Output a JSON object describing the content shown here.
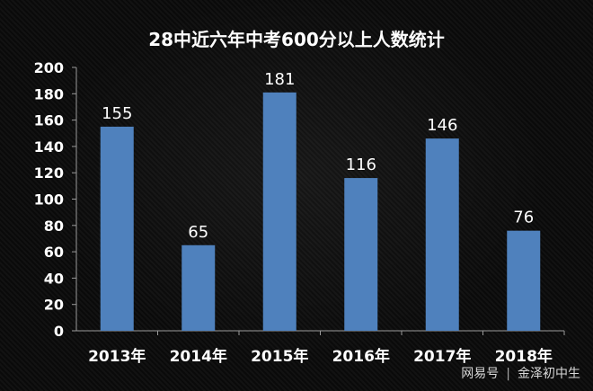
{
  "chart_data": {
    "type": "bar",
    "title": "28中近六年中考600分以上人数统计",
    "categories": [
      "2013年",
      "2014年",
      "2015年",
      "2016年",
      "2017年",
      "2018年"
    ],
    "values": [
      155,
      65,
      181,
      116,
      146,
      76
    ],
    "ylim": [
      0,
      200
    ],
    "yticks": [
      0,
      20,
      40,
      60,
      80,
      100,
      120,
      140,
      160,
      180,
      200
    ],
    "grid": false,
    "bar_color": "#4f81bd",
    "axis_color": "#9a9a9a",
    "text_color": "#ffffff"
  },
  "watermark": {
    "brand": "网易号",
    "separator": "|",
    "author": "金泽初中生"
  }
}
